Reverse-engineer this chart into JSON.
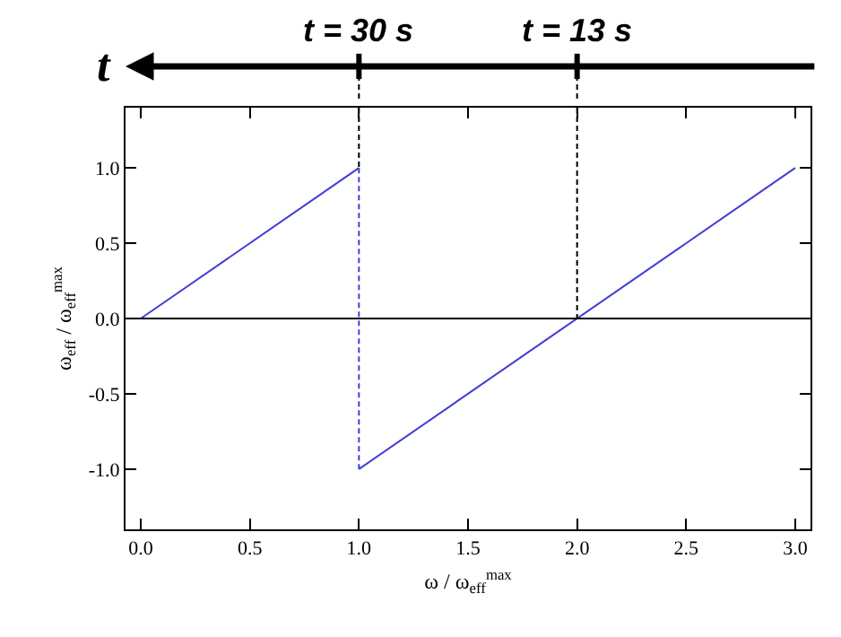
{
  "chart_data": {
    "type": "line",
    "xlabel": "ω / ω$_{eff}$$^{max}$",
    "ylabel": "ω$_{eff}$ / ω$_{eff}$$^{max}$",
    "series": [
      {
        "color": "#3f3fd4",
        "x": [
          0,
          1
        ],
        "values": [
          0,
          1
        ]
      },
      {
        "color": "#3f3fd4",
        "x": [
          1,
          1
        ],
        "values": [
          1,
          -1
        ],
        "line_style": "dashed"
      },
      {
        "color": "#3f3fd4",
        "x": [
          1,
          3
        ],
        "values": [
          -1,
          1
        ]
      },
      {
        "color": "#000000",
        "x": [
          1,
          1
        ],
        "values": [
          1.4,
          1
        ],
        "line_style": "dashed"
      },
      {
        "color": "#000000",
        "x": [
          2,
          2
        ],
        "values": [
          1.4,
          0
        ],
        "line_style": "dashed"
      }
    ],
    "xlim": [
      -0.07,
      3.07
    ],
    "ylim": [
      -1.4,
      1.4
    ],
    "xticks": [
      {
        "value": 0,
        "label": "0.0"
      },
      {
        "value": 0.5,
        "label": "0.5"
      },
      {
        "value": 1,
        "label": "1.0"
      },
      {
        "value": 1.5,
        "label": "1.5"
      },
      {
        "value": 2,
        "label": "2.0"
      },
      {
        "value": 2.5,
        "label": "2.5"
      },
      {
        "value": 3,
        "label": "3.0"
      }
    ],
    "yticks": [
      {
        "value": -1,
        "label": "-1.0"
      },
      {
        "value": -0.5,
        "label": "-0.5"
      },
      {
        "value": 0,
        "label": "0.0"
      },
      {
        "value": 0.5,
        "label": "0.5"
      },
      {
        "value": 1,
        "label": "1.0"
      }
    ],
    "ref_lines": [
      {
        "axis": "y",
        "value": 0,
        "color": "#000000"
      }
    ],
    "annotations": [
      "t",
      "t = 30 s",
      "t = 13 s"
    ],
    "grid": false,
    "marker": "none",
    "line_style": "solid"
  }
}
